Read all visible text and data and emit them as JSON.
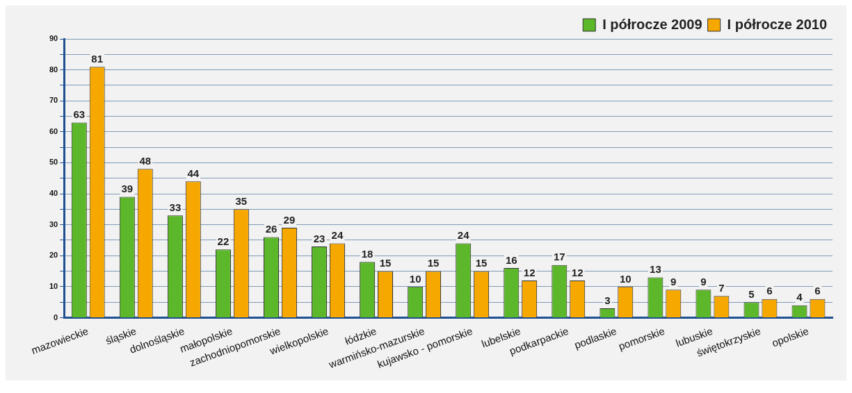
{
  "chart_data": {
    "type": "bar",
    "categories": [
      "mazowieckie",
      "śląskie",
      "dolnośląskie",
      "małopolskie",
      "zachodniopomorskie",
      "wielkopolskie",
      "łódzkie",
      "warmińsko-mazurskie",
      "kujawsko - pomorskie",
      "lubelskie",
      "podkarpackie",
      "podlaskie",
      "pomorskie",
      "lubuskie",
      "świętokrzyskie",
      "opolskie"
    ],
    "series": [
      {
        "name": "I półrocze 2009",
        "color": "#5cb82a",
        "values": [
          63,
          39,
          33,
          22,
          26,
          23,
          18,
          10,
          24,
          16,
          17,
          3,
          13,
          9,
          5,
          4
        ]
      },
      {
        "name": "I półrocze 2010",
        "color": "#f7a800",
        "values": [
          81,
          48,
          44,
          35,
          29,
          24,
          15,
          15,
          15,
          12,
          12,
          10,
          9,
          7,
          6,
          6
        ]
      }
    ],
    "ylim": [
      0,
      90
    ],
    "yticks": [
      0,
      {
        "value": 5,
        "label": null
      },
      10,
      {
        "value": 15,
        "label": null
      },
      20,
      {
        "value": 25,
        "label": null
      },
      30,
      {
        "value": 35,
        "label": null
      },
      40,
      {
        "value": 45,
        "label": null
      },
      50,
      {
        "value": 55,
        "label": null
      },
      60,
      {
        "value": 65,
        "label": null
      },
      70,
      {
        "value": 75,
        "label": null
      },
      80,
      {
        "value": 85,
        "label": null
      },
      90
    ],
    "grid": "y",
    "legend": "top right",
    "data_labels": true
  }
}
